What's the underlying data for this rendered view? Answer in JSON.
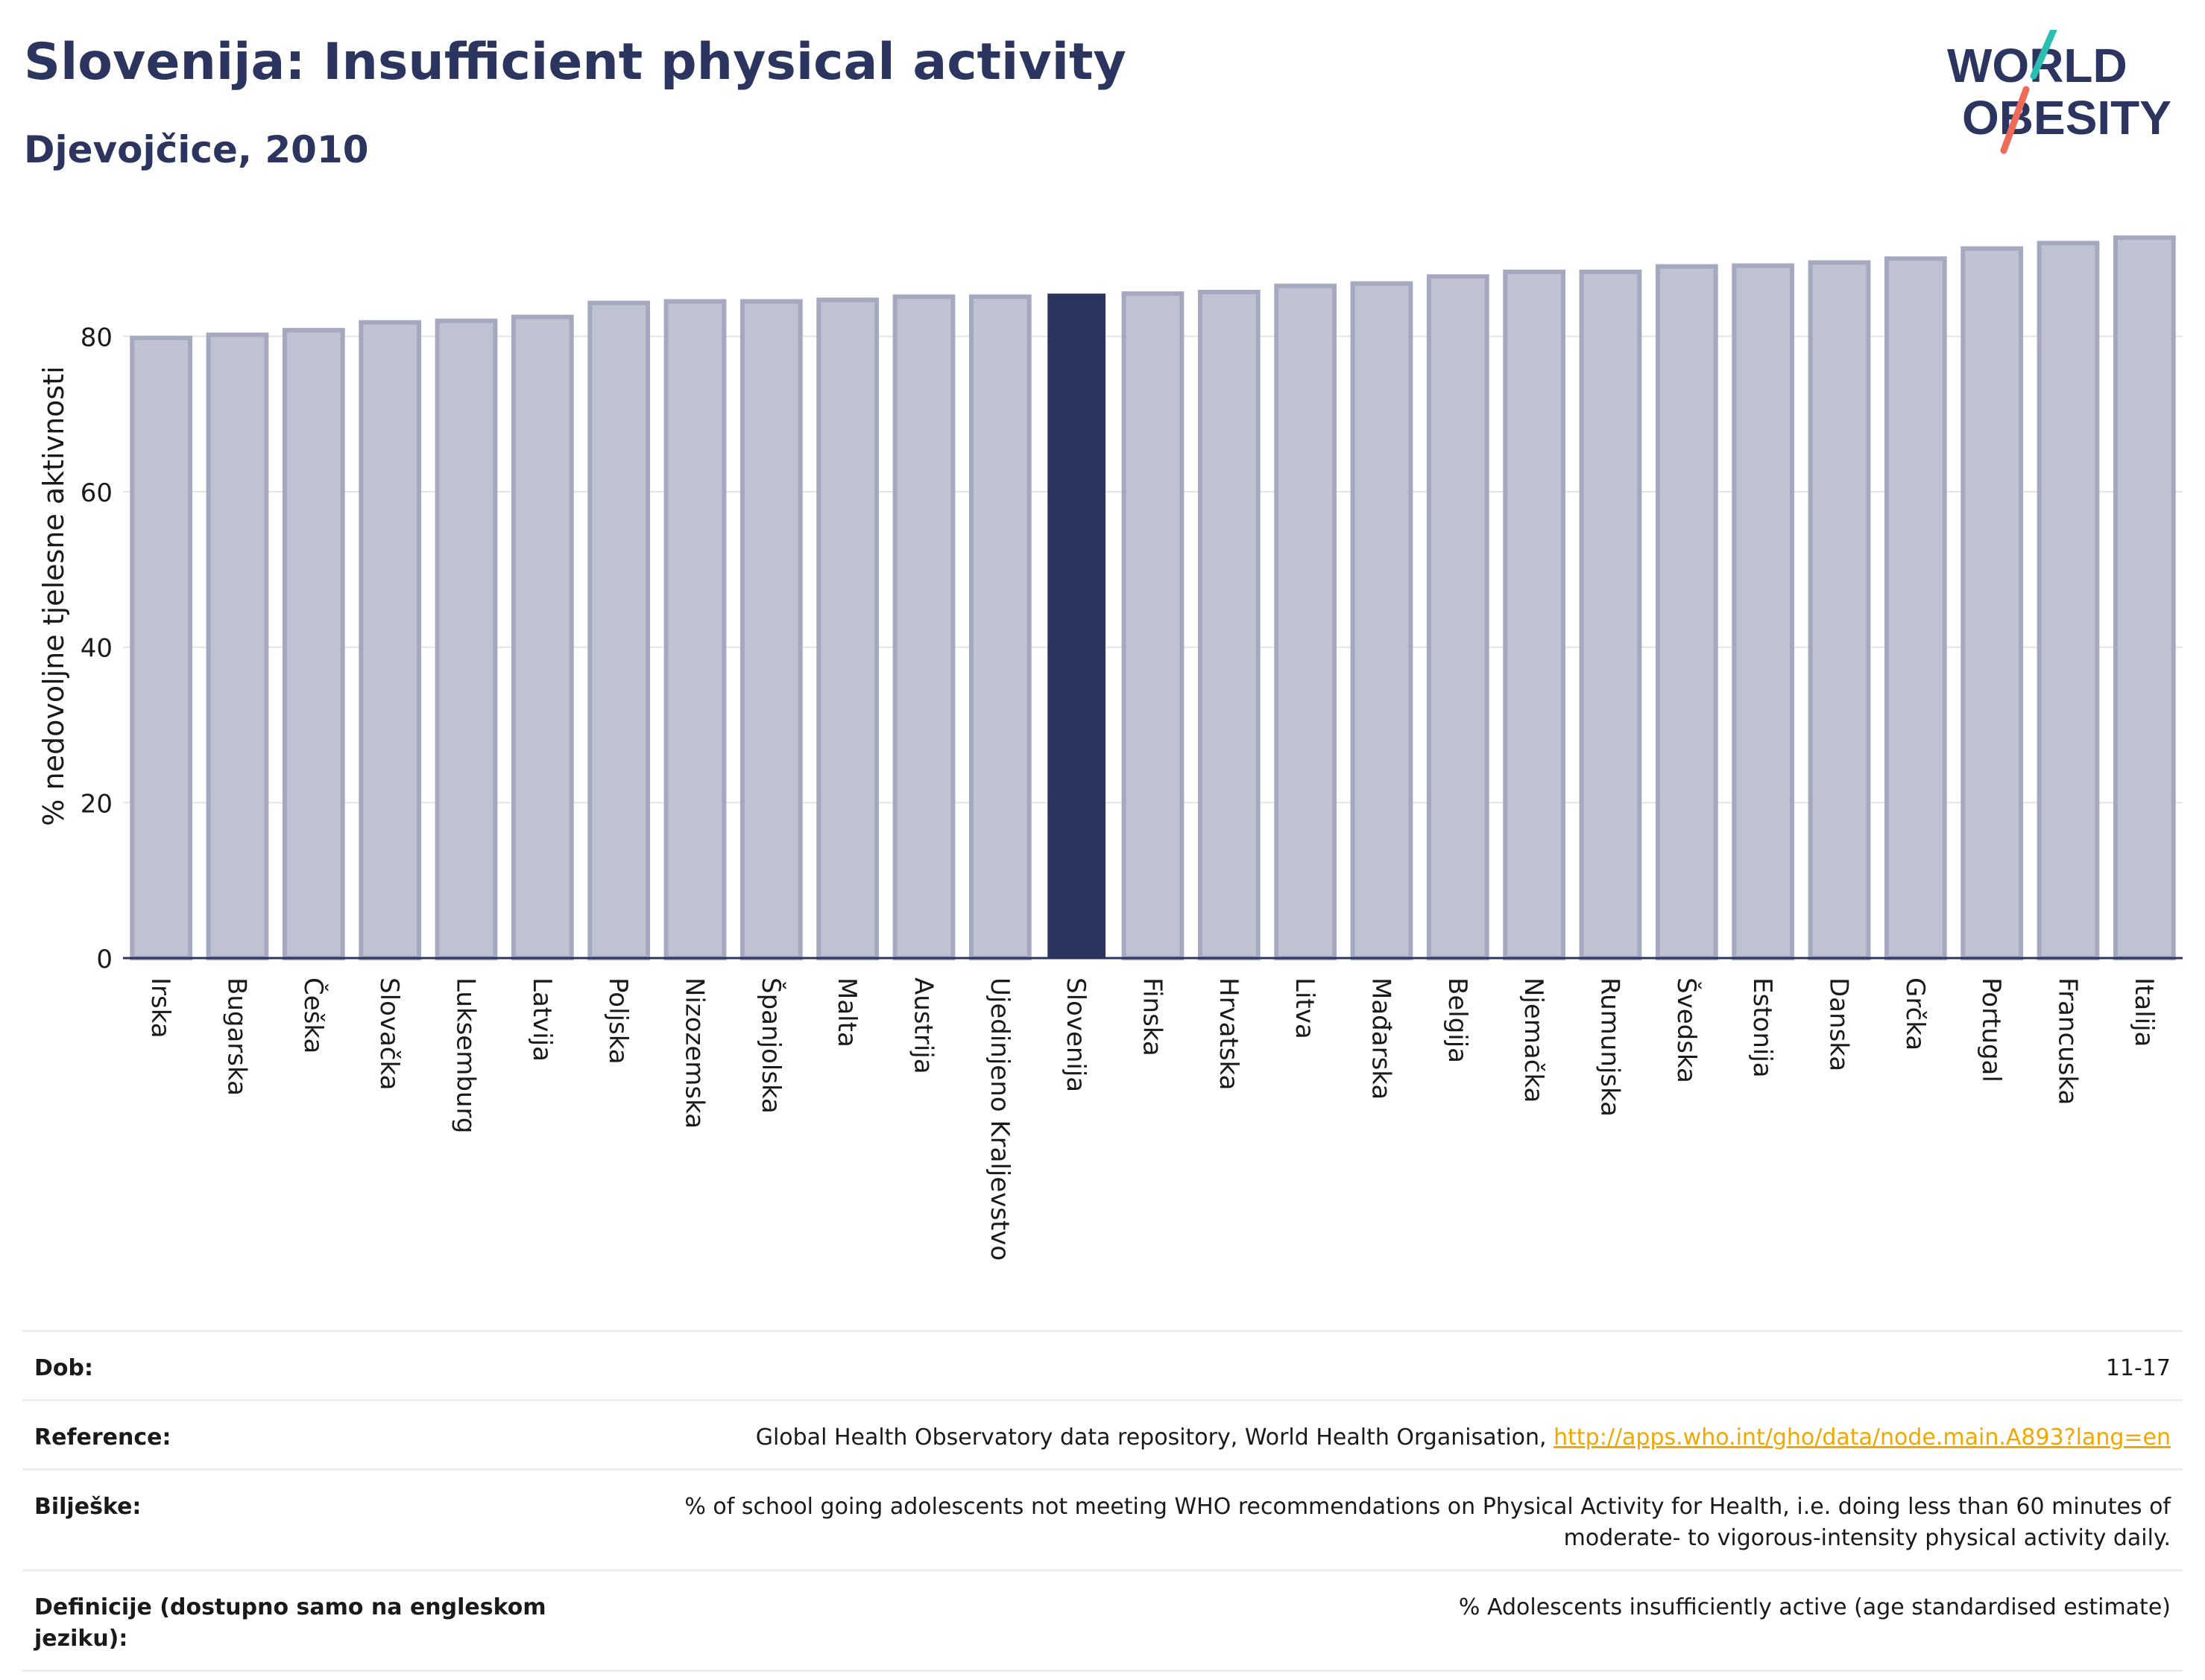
{
  "header": {
    "title": "Slovenija: Insufficient physical activity",
    "subtitle": "Djevojčice, 2010"
  },
  "logo": {
    "line1": "WORLD",
    "line2": "OBESITY"
  },
  "colors": {
    "title": "#2b3560",
    "highlight_bar": "#2b3560",
    "bar_fill": "#bfc2d0",
    "bar_stroke": "#a4a9bf",
    "logo_teal": "#2bbfb3",
    "logo_coral": "#ee6b5a",
    "link": "#f0a800"
  },
  "chart_data": {
    "type": "bar",
    "ylabel": "% nedovoljne tjelesne aktivnosti",
    "xlabel": "",
    "ylim": [
      0,
      95
    ],
    "yticks": [
      0,
      20,
      40,
      60,
      80
    ],
    "grid": true,
    "highlight": "Slovenija",
    "categories": [
      "Irska",
      "Bugarska",
      "Češka",
      "Slovačka",
      "Luksemburg",
      "Latvija",
      "Poljska",
      "Nizozemska",
      "Španjolska",
      "Malta",
      "Austrija",
      "Ujedinjeno Kraljevstvo",
      "Slovenija",
      "Finska",
      "Hrvatska",
      "Litva",
      "Mađarska",
      "Belgija",
      "Njemačka",
      "Rumunjska",
      "Švedska",
      "Estonija",
      "Danska",
      "Grčka",
      "Portugal",
      "Francuska",
      "Italija"
    ],
    "values": [
      79.8,
      80.2,
      80.8,
      81.8,
      82.0,
      82.5,
      84.3,
      84.5,
      84.5,
      84.7,
      85.1,
      85.1,
      85.5,
      85.5,
      85.7,
      86.5,
      86.8,
      87.7,
      88.3,
      88.3,
      89.0,
      89.1,
      89.5,
      90.0,
      91.3,
      92.0,
      92.7
    ]
  },
  "meta": {
    "age_label": "Dob:",
    "age_value": "11-17",
    "reference_label": "Reference:",
    "reference_text": "Global Health Observatory data repository, World Health Organisation,",
    "reference_link": "http://apps.who.int/gho/data/node.main.A893?lang=en",
    "notes_label": "Bilješke:",
    "notes_value": "% of school going adolescents not meeting WHO recommendations on Physical Activity for Health, i.e. doing less than 60 minutes of moderate- to vigorous-intensity physical activity daily.",
    "definitions_label": "Definicije (dostupno samo na engleskom jeziku):",
    "definitions_value": "% Adolescents insufficiently active (age standardised estimate)"
  }
}
